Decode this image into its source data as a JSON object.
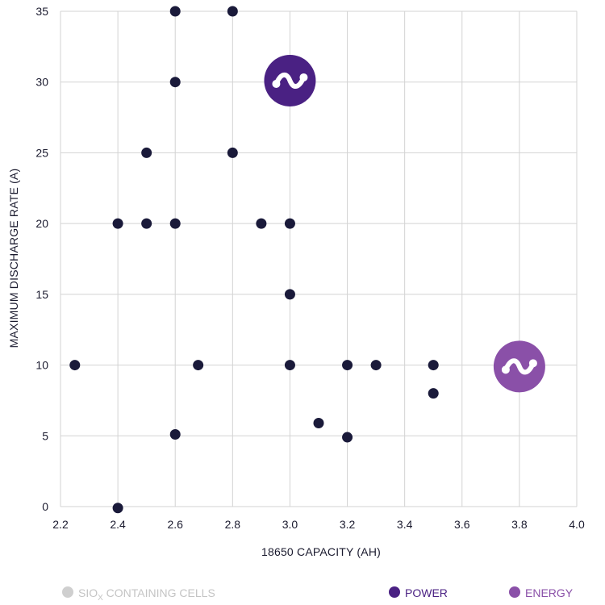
{
  "chart_data": {
    "type": "scatter",
    "xlabel": "18650 CAPACITY (AH)",
    "ylabel": "MAXIMUM DISCHARGE RATE (A)",
    "xlim": [
      2.2,
      4.0
    ],
    "ylim": [
      0,
      35
    ],
    "xticks": [
      "2.2",
      "2.4",
      "2.6",
      "2.8",
      "3.0",
      "3.2",
      "3.4",
      "3.6",
      "3.8",
      "4.0"
    ],
    "xtick_values": [
      2.2,
      2.4,
      2.6,
      2.8,
      3.0,
      3.2,
      3.4,
      3.6,
      3.8,
      4.0
    ],
    "yticks": [
      "0",
      "5",
      "10",
      "15",
      "20",
      "25",
      "30",
      "35"
    ],
    "ytick_values": [
      0,
      5,
      10,
      15,
      20,
      25,
      30,
      35
    ],
    "grid": true,
    "legend_position": "bottom",
    "series": [
      {
        "color": "#1a1a3a",
        "points": [
          {
            "x": 2.6,
            "y": 35
          },
          {
            "x": 2.8,
            "y": 35
          },
          {
            "x": 2.6,
            "y": 30
          },
          {
            "x": 2.5,
            "y": 25
          },
          {
            "x": 2.8,
            "y": 25
          },
          {
            "x": 2.4,
            "y": 20
          },
          {
            "x": 2.5,
            "y": 20
          },
          {
            "x": 2.6,
            "y": 20
          },
          {
            "x": 2.9,
            "y": 20
          },
          {
            "x": 3.0,
            "y": 20
          },
          {
            "x": 3.0,
            "y": 15
          },
          {
            "x": 2.25,
            "y": 10
          },
          {
            "x": 2.68,
            "y": 10
          },
          {
            "x": 3.0,
            "y": 10
          },
          {
            "x": 3.2,
            "y": 10
          },
          {
            "x": 3.3,
            "y": 10
          },
          {
            "x": 3.5,
            "y": 10
          },
          {
            "x": 3.5,
            "y": 8
          },
          {
            "x": 3.1,
            "y": 5.9
          },
          {
            "x": 2.6,
            "y": 5.1
          },
          {
            "x": 3.2,
            "y": 4.9
          },
          {
            "x": 2.4,
            "y": -0.1
          }
        ]
      },
      {
        "name": "POWER",
        "color": "#4a2183",
        "icon": "wave-icon",
        "points": [
          {
            "x": 3.0,
            "y": 30.1
          }
        ]
      },
      {
        "name": "ENERGY",
        "color": "#8a50a8",
        "icon": "wave-icon",
        "points": [
          {
            "x": 3.8,
            "y": 9.9
          }
        ]
      }
    ]
  },
  "legend": {
    "items": [
      {
        "label_main": "SIO",
        "label_sub": "X",
        "label_rest": " CONTAINING CELLS",
        "color": "#cfcfcf"
      },
      {
        "label": "POWER",
        "color": "#4a2183"
      },
      {
        "label": "ENERGY",
        "color": "#8a50a8"
      }
    ]
  }
}
